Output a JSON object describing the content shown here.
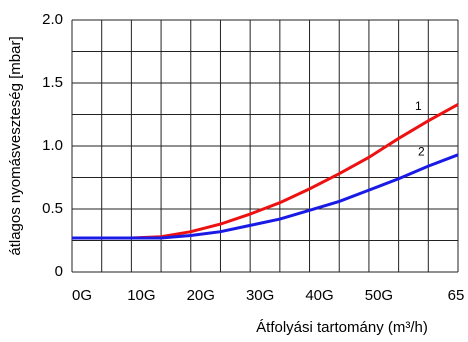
{
  "chart_data": {
    "type": "line",
    "x_label": "Átfolyási tartomány (m³/h)",
    "y_label": "átlagos nyomásveszteség  [mbar]",
    "x": [
      0,
      5,
      10,
      15,
      20,
      25,
      30,
      35,
      40,
      45,
      50,
      55,
      60,
      65
    ],
    "series": [
      {
        "name": "1",
        "color": "#ee1111",
        "values": [
          0.27,
          0.27,
          0.27,
          0.28,
          0.32,
          0.38,
          0.46,
          0.55,
          0.66,
          0.78,
          0.91,
          1.06,
          1.2,
          1.33
        ]
      },
      {
        "name": "2",
        "color": "#1a1ae6",
        "values": [
          0.27,
          0.27,
          0.27,
          0.27,
          0.29,
          0.32,
          0.37,
          0.42,
          0.49,
          0.56,
          0.65,
          0.74,
          0.84,
          0.93
        ]
      }
    ],
    "xlim": [
      0,
      65
    ],
    "xticks": [
      {
        "value": 0,
        "label": "0G"
      },
      {
        "value": 10,
        "label": "10G"
      },
      {
        "value": 20,
        "label": "20G"
      },
      {
        "value": 30,
        "label": "30G"
      },
      {
        "value": 40,
        "label": "40G"
      },
      {
        "value": 50,
        "label": "50G"
      },
      65
    ],
    "ylim": [
      0,
      2
    ],
    "yticks": [
      0,
      0.5,
      {
        "value": 1,
        "label": "1.0"
      },
      1.5,
      {
        "value": 2,
        "label": "2.0"
      }
    ],
    "xgrid": [
      0,
      5,
      10,
      15,
      20,
      25,
      30,
      35,
      40,
      45,
      50,
      55,
      60,
      65
    ],
    "ygrid": [
      0,
      0.25,
      0.5,
      0.75,
      1,
      1.25,
      1.5,
      1.75,
      2
    ],
    "grid": true
  }
}
